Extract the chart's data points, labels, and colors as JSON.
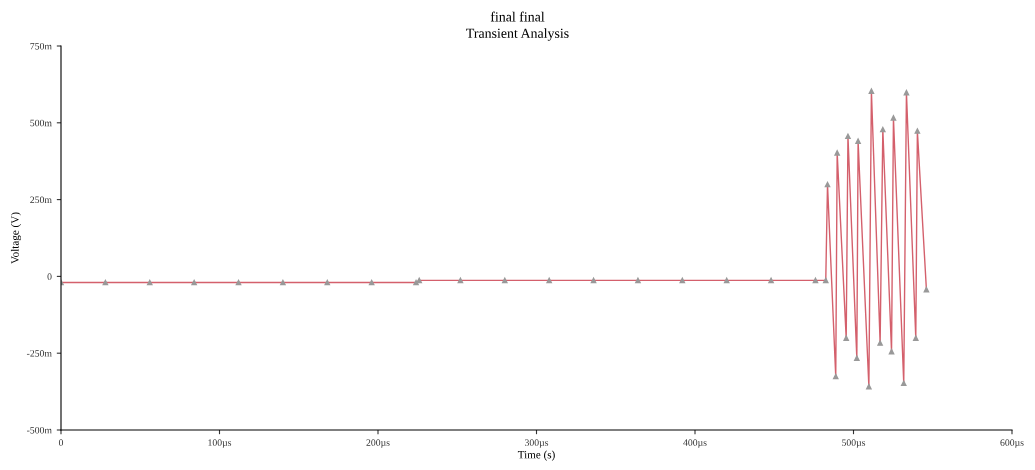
{
  "chart_data": {
    "type": "line",
    "title": "final final",
    "subtitle": "Transient Analysis",
    "xlabel": "Time (s)",
    "ylabel": "Voltage (V)",
    "x": [
      0,
      28,
      56,
      84,
      112,
      140,
      168,
      196,
      224,
      226,
      252,
      280,
      308,
      336,
      364,
      392,
      420,
      448,
      476,
      482.5,
      483.6,
      488.8,
      489.7,
      495.4,
      496.5,
      502.1,
      502.9,
      509.7,
      511.3,
      516.8,
      518.5,
      524.0,
      525.2,
      531.7,
      533.4,
      539.3,
      540.3,
      546.0
    ],
    "series": [
      {
        "color": "#d4606c",
        "values": [
          -20,
          -20,
          -20,
          -20,
          -20,
          -20,
          -20,
          -20,
          -20,
          -13,
          -13,
          -13,
          -13,
          -13,
          -13,
          -13,
          -13,
          -13,
          -13,
          -13,
          299,
          -326,
          402,
          -201,
          456,
          -266,
          440,
          -359,
          603,
          -217,
          478,
          -245,
          516,
          -348,
          598,
          -201,
          473,
          -43
        ]
      }
    ],
    "marker": "triangle",
    "grid": false,
    "legend": false,
    "xlim": [
      0,
      600
    ],
    "xticks": [
      0,
      {
        "value": 100,
        "label": "100µs"
      },
      {
        "value": 200,
        "label": "200µs"
      },
      {
        "value": 300,
        "label": "300µs"
      },
      {
        "value": 400,
        "label": "400µs"
      },
      {
        "value": 500,
        "label": "500µs"
      },
      {
        "value": 600,
        "label": "600µs"
      }
    ],
    "ylim": [
      -500,
      750
    ],
    "yticks": [
      {
        "value": -500,
        "label": "-500m"
      },
      {
        "value": -250,
        "label": "-250m"
      },
      0,
      {
        "value": 250,
        "label": "250m"
      },
      {
        "value": 500,
        "label": "500m"
      },
      {
        "value": 750,
        "label": "750m"
      }
    ]
  }
}
